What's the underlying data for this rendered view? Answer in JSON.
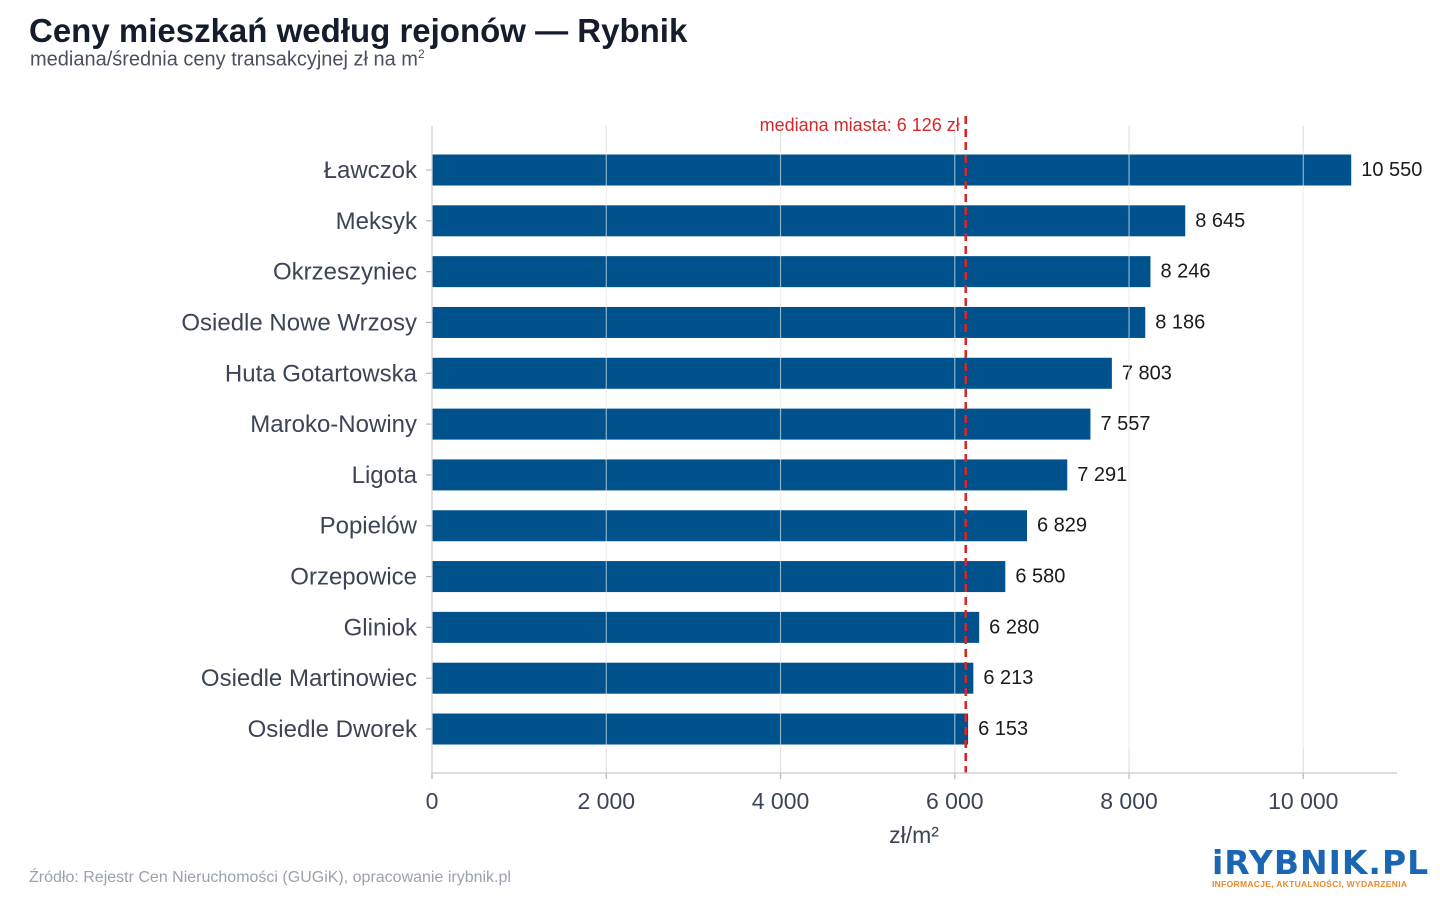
{
  "title": "Ceny mieszkań według rejonów — Rybnik",
  "subtitle": "mediana/średnia ceny transakcyjnej zł na m",
  "subtitle_sup": "2",
  "source": "Źródło: Rejestr Cen Nieruchomości (GUGiK), opracowanie irybnik.pl",
  "logo": {
    "main": "iRYBNIK.PL",
    "tagline": "INFORMACJE, AKTUALNOŚCI, WYDARZENIA"
  },
  "colors": {
    "bar": "#00528d",
    "median_line": "#d62828",
    "grid": "#e3e3e3",
    "label": "#3c4456"
  },
  "chart_data": {
    "type": "bar",
    "orientation": "horizontal",
    "categories": [
      "Ławczok",
      "Meksyk",
      "Okrzeszyniec",
      "Osiedle Nowe Wrzosy",
      "Huta Gotartowska",
      "Maroko-Nowiny",
      "Ligota",
      "Popielów",
      "Orzepowice",
      "Gliniok",
      "Osiedle Martinowiec",
      "Osiedle Dworek"
    ],
    "values": [
      10550,
      8645,
      8246,
      8186,
      7803,
      7557,
      7291,
      6829,
      6580,
      6280,
      6213,
      6153
    ],
    "value_labels": [
      "10 550",
      "8 645",
      "8 246",
      "8 186",
      "7 803",
      "7 557",
      "7 291",
      "6 829",
      "6 580",
      "6 280",
      "6 213",
      "6 153"
    ],
    "xlabel": "zł/m²",
    "xlim": [
      0,
      11100
    ],
    "xticks": [
      0,
      2000,
      4000,
      6000,
      8000,
      10000
    ],
    "xtick_labels": [
      "0",
      "2 000",
      "4 000",
      "6 000",
      "8 000",
      "10 000"
    ],
    "grid": true,
    "reference_line": {
      "value": 6126,
      "label": "mediana miasta: 6 126 zł"
    }
  }
}
